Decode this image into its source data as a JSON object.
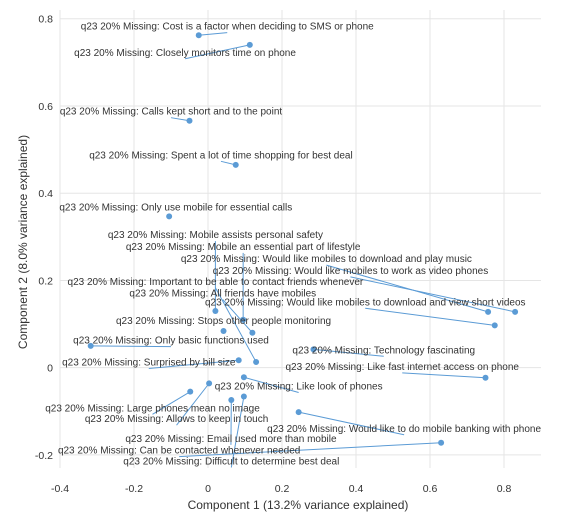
{
  "chart_data": {
    "type": "scatter",
    "xlabel": "Component 1 (13.2% variance explained)",
    "ylabel": "Component 2 (8.0% variance explained)",
    "xlim": [
      -0.4,
      0.9
    ],
    "ylim": [
      -0.23,
      0.82
    ],
    "x_ticks": [
      -0.4,
      -0.2,
      0,
      0.2,
      0.4,
      0.6,
      0.8
    ],
    "x_tick_labels": [
      "-0.4",
      "-0.2",
      "0",
      "0.2",
      "0.4",
      "0.6",
      "0.8"
    ],
    "y_ticks": [
      -0.2,
      0,
      0.2,
      0.4,
      0.6,
      0.8
    ],
    "y_tick_labels": [
      "-0.2",
      "0",
      "0.2",
      "0.4",
      "0.6",
      "0.8"
    ],
    "grid": true,
    "point_color": "#5b9bd5",
    "points": [
      {
        "label": "q23 20% Missing: Cost is a factor when deciding to SMS or phone",
        "x": -0.025,
        "y": 0.762,
        "lx": 0.052,
        "ly": 0.775
      },
      {
        "label": "q23 20% Missing: Closely monitors time on phone",
        "x": 0.113,
        "y": 0.74,
        "lx": -0.062,
        "ly": 0.715
      },
      {
        "label": "q23 20% Missing: Calls kept short and to the point",
        "x": -0.05,
        "y": 0.566,
        "lx": -0.1,
        "ly": 0.58
      },
      {
        "label": "q23 20% Missing: Spent a lot of time shopping for best deal",
        "x": 0.075,
        "y": 0.465,
        "lx": 0.035,
        "ly": 0.48
      },
      {
        "label": "q23 20% Missing: Only use mobile for essential calls",
        "x": -0.105,
        "y": 0.347,
        "lx": -0.087,
        "ly": 0.36
      },
      {
        "label": "q23 20% Missing: Mobile assists personal safety",
        "x": 0.02,
        "y": 0.13,
        "lx": 0.02,
        "ly": 0.297
      },
      {
        "label": "q23 20% Missing: Mobile an essential part of lifestyle",
        "x": 0.095,
        "y": 0.11,
        "lx": 0.095,
        "ly": 0.27
      },
      {
        "label": "q23 20% Missing: Would like mobiles to download and play music",
        "x": 0.757,
        "y": 0.128,
        "lx": 0.32,
        "ly": 0.242
      },
      {
        "label": "q23 20% Missing: Would like mobiles to work as video phones",
        "x": 0.83,
        "y": 0.128,
        "lx": 0.385,
        "ly": 0.215
      },
      {
        "label": "q23 20% Missing: Important to be able to contact friends whenever",
        "x": 0.13,
        "y": 0.013,
        "lx": 0.02,
        "ly": 0.19
      },
      {
        "label": "q23 20% Missing: All friends have mobiles",
        "x": 0.12,
        "y": 0.08,
        "lx": 0.04,
        "ly": 0.163
      },
      {
        "label": "q23 20% Missing: Would like mobiles to download and view short videos",
        "x": 0.775,
        "y": 0.097,
        "lx": 0.425,
        "ly": 0.143
      },
      {
        "label": "q23 20% Missing: Stops other people monitoring",
        "x": 0.042,
        "y": 0.084,
        "lx": 0.042,
        "ly": 0.1
      },
      {
        "label": "q23 20% Missing: Only basic functions used",
        "x": -0.317,
        "y": 0.05,
        "lx": -0.1,
        "ly": 0.055
      },
      {
        "label": "q23 20% Missing: Technology fascinating",
        "x": 0.285,
        "y": 0.042,
        "lx": 0.475,
        "ly": 0.033
      },
      {
        "label": "q23 20% Missing: Surprised by bill size",
        "x": 0.083,
        "y": 0.017,
        "lx": -0.16,
        "ly": 0.005
      },
      {
        "label": "q23 20% Missing: Like fast internet access on phone",
        "x": 0.75,
        "y": -0.023,
        "lx": 0.525,
        "ly": -0.005
      },
      {
        "label": "q23 20% Missing: Like look of phones",
        "x": 0.097,
        "y": -0.022,
        "lx": 0.245,
        "ly": -0.05
      },
      {
        "label": "q23 20% Missing: Large phones mean no image",
        "x": -0.048,
        "y": -0.055,
        "lx": -0.15,
        "ly": -0.1
      },
      {
        "label": "q23 20% Missing: Allows to keep in touch",
        "x": 0.003,
        "y": -0.036,
        "lx": -0.085,
        "ly": -0.125
      },
      {
        "label": "q23 20% Missing: Would like to do mobile banking with phone",
        "x": 0.245,
        "y": -0.102,
        "lx": 0.53,
        "ly": -0.147
      },
      {
        "label": "q23 20% Missing: Email used more than mobile",
        "x": 0.063,
        "y": -0.074,
        "lx": 0.062,
        "ly": -0.17
      },
      {
        "label": "q23 20% Missing: Can be contacted whenever needed",
        "x": 0.63,
        "y": -0.172,
        "lx": -0.078,
        "ly": -0.197
      },
      {
        "label": "q23 20% Missing: Difficult to determine best deal",
        "x": 0.097,
        "y": -0.066,
        "lx": 0.063,
        "ly": -0.222
      }
    ]
  }
}
